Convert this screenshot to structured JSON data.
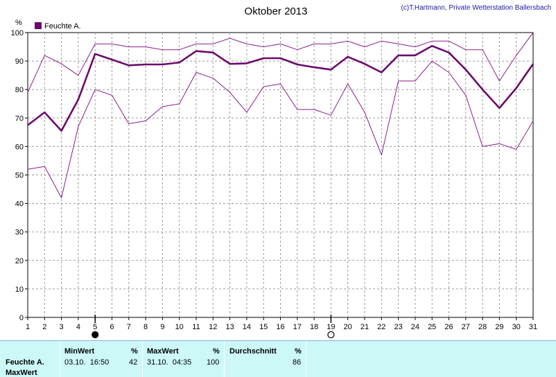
{
  "chart_data": {
    "type": "line",
    "title": "Oktober 2013",
    "credit": "(c)T.Hartmann, Private Wetterstation Ballersbach",
    "ylabel": "%",
    "ylim": [
      0,
      100
    ],
    "xlim": [
      1,
      31
    ],
    "grid": true,
    "legend_position": "top-left",
    "legend": [
      "Feuchte A."
    ],
    "x": [
      1,
      2,
      3,
      4,
      5,
      6,
      7,
      8,
      9,
      10,
      11,
      12,
      13,
      14,
      15,
      16,
      17,
      18,
      19,
      20,
      21,
      22,
      23,
      24,
      25,
      26,
      27,
      28,
      29,
      30,
      31
    ],
    "x_ticks": [
      "1",
      "2",
      "3",
      "4",
      "5",
      "6",
      "7",
      "8",
      "9",
      "10",
      "11",
      "12",
      "13",
      "14",
      "15",
      "16",
      "17",
      "18",
      "19",
      "20",
      "21",
      "22",
      "23",
      "24",
      "25",
      "26",
      "27",
      "28",
      "29",
      "30",
      "31"
    ],
    "y_ticks": [
      "0",
      "10",
      "20",
      "30",
      "40",
      "50",
      "60",
      "70",
      "80",
      "90",
      "100"
    ],
    "series": [
      {
        "name": "Feuchte A.",
        "role": "mean",
        "color": "#6b0a6b",
        "values": [
          67.5,
          72,
          65.5,
          76.5,
          92.5,
          90.5,
          88.5,
          88.8,
          88.8,
          89.5,
          93.5,
          93,
          89,
          89.2,
          91,
          91,
          88.8,
          87.8,
          87,
          91.5,
          89,
          86,
          92,
          92,
          95.3,
          93,
          87,
          80,
          73.5,
          80.5,
          89
        ]
      },
      {
        "role": "max",
        "color": "#8b1a8b",
        "values": [
          79,
          92,
          89,
          85,
          96,
          96,
          95,
          95,
          94,
          94,
          96,
          96,
          98,
          96,
          95,
          96,
          94,
          96,
          96,
          97,
          95,
          97,
          96,
          95,
          97,
          97,
          94,
          94,
          83,
          92,
          100
        ]
      },
      {
        "role": "min",
        "color": "#8b1a8b",
        "values": [
          52,
          53,
          42,
          67,
          80,
          78,
          68,
          69,
          74,
          75,
          86,
          84,
          79,
          72,
          81,
          82,
          73,
          73,
          71,
          82,
          72,
          57,
          83,
          83,
          90,
          86,
          78,
          60,
          61,
          59,
          69
        ]
      }
    ],
    "moon_phases": [
      {
        "day": 5,
        "phase": "new-moon"
      },
      {
        "day": 19,
        "phase": "full-moon"
      }
    ]
  },
  "summary": {
    "row_label": "Feuchte A.",
    "row_label_2": "MaxWert",
    "min_header": "MinWert",
    "min_unit": "%",
    "min_time": "03.10.  16:50",
    "min_value": "42",
    "max_header": "MaxWert",
    "max_unit": "%",
    "max_time": "31.10.  04:35",
    "max_value": "100",
    "avg_header": "Durchschnitt",
    "avg_unit": "%",
    "avg_value": "86"
  }
}
